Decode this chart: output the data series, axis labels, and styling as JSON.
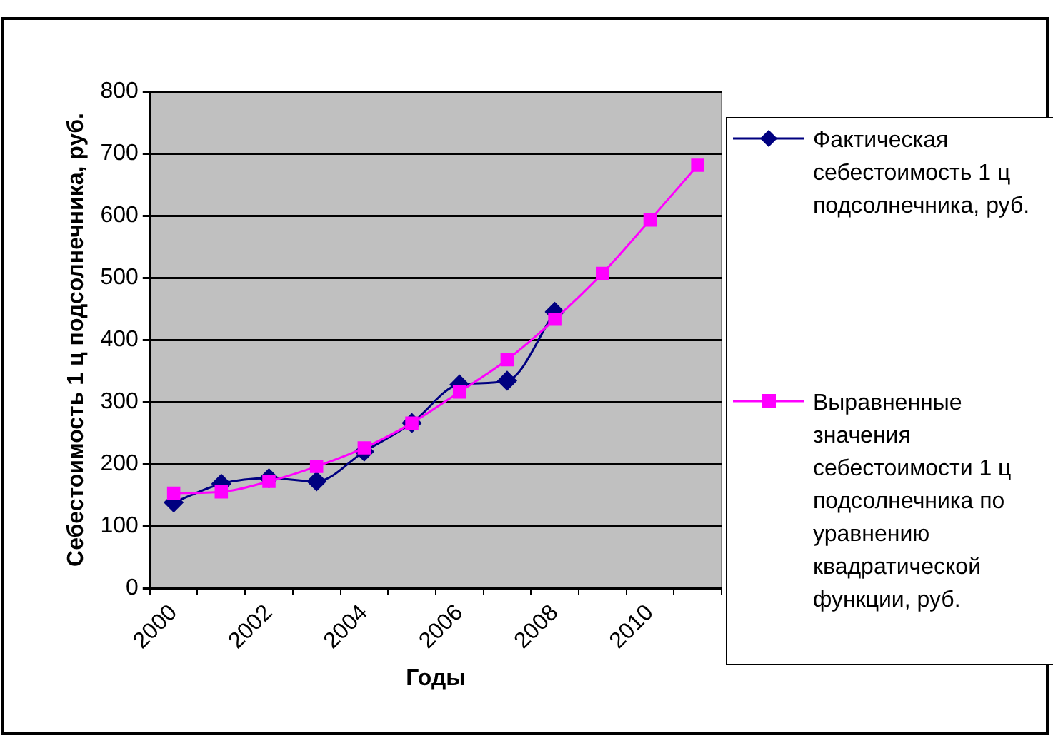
{
  "chart_data": {
    "type": "line",
    "xlabel": "Годы",
    "ylabel": "Себестоимость 1 ц подсолнечника, руб.",
    "categories": [
      "2000",
      null,
      "2002",
      null,
      "2004",
      null,
      "2006",
      null,
      "2008",
      null,
      "2010",
      null
    ],
    "series": [
      {
        "name": "Фактическая себестоимость 1 ц подсолнечника, руб.",
        "color": "#000080",
        "marker": "diamond",
        "values": [
          138,
          168,
          177,
          172,
          220,
          266,
          328,
          334,
          445,
          null,
          null,
          null
        ]
      },
      {
        "name": "Выравненные значения себестоимости 1 ц подсолнечника по уравнению квадратической функции, руб.",
        "color": "#ff00ff",
        "marker": "square",
        "values": [
          153,
          155,
          172,
          196,
          226,
          266,
          316,
          368,
          433,
          507,
          593,
          681
        ]
      }
    ],
    "ylim": [
      0,
      800
    ],
    "yticks": [
      0,
      100,
      200,
      300,
      400,
      500,
      600,
      700,
      800
    ],
    "grid": "y",
    "legend": "right",
    "line_style": "solid"
  }
}
